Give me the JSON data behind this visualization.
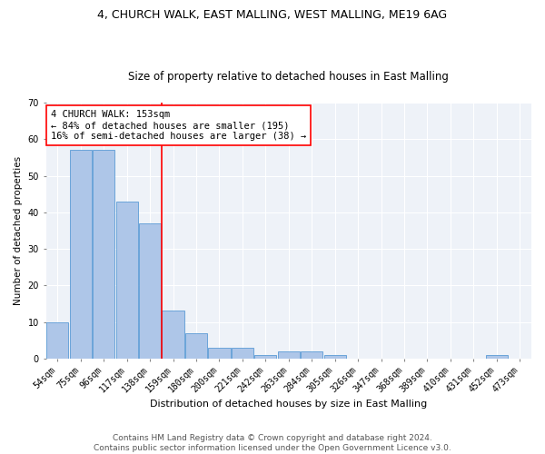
{
  "title1": "4, CHURCH WALK, EAST MALLING, WEST MALLING, ME19 6AG",
  "title2": "Size of property relative to detached houses in East Malling",
  "xlabel": "Distribution of detached houses by size in East Malling",
  "ylabel": "Number of detached properties",
  "categories": [
    "54sqm",
    "75sqm",
    "96sqm",
    "117sqm",
    "138sqm",
    "159sqm",
    "180sqm",
    "200sqm",
    "221sqm",
    "242sqm",
    "263sqm",
    "284sqm",
    "305sqm",
    "326sqm",
    "347sqm",
    "368sqm",
    "389sqm",
    "410sqm",
    "431sqm",
    "452sqm",
    "473sqm"
  ],
  "values": [
    10,
    57,
    57,
    43,
    37,
    13,
    7,
    3,
    3,
    1,
    2,
    2,
    1,
    0,
    0,
    0,
    0,
    0,
    0,
    1,
    0
  ],
  "bar_color": "#aec6e8",
  "bar_edge_color": "#5b9bd5",
  "vline_color": "red",
  "vline_index": 4.5,
  "ylim": [
    0,
    70
  ],
  "yticks": [
    0,
    10,
    20,
    30,
    40,
    50,
    60,
    70
  ],
  "annotation_text": "4 CHURCH WALK: 153sqm\n← 84% of detached houses are smaller (195)\n16% of semi-detached houses are larger (38) →",
  "annotation_box_color": "white",
  "annotation_box_edge_color": "red",
  "footer1": "Contains HM Land Registry data © Crown copyright and database right 2024.",
  "footer2": "Contains public sector information licensed under the Open Government Licence v3.0.",
  "background_color": "#eef2f8",
  "grid_color": "white",
  "title1_fontsize": 9,
  "title2_fontsize": 8.5,
  "xlabel_fontsize": 8,
  "ylabel_fontsize": 7.5,
  "tick_fontsize": 7,
  "footer_fontsize": 6.5,
  "annotation_fontsize": 7.5
}
